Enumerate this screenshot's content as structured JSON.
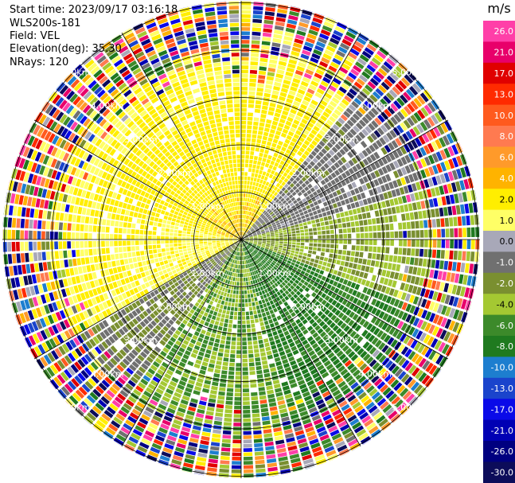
{
  "header": {
    "start_time": "Start time: 2023/09/17 03:16:18",
    "instrument": "WLS200s-181",
    "field": "Field: VEL",
    "elevation": "Elevation(deg): 35.30",
    "nrays": "NRays: 120"
  },
  "colorbar": {
    "unit": "m/s",
    "ticks": [
      "26.0",
      "21.0",
      "17.0",
      "13.0",
      "10.0",
      "8.0",
      "6.0",
      "4.0",
      "2.0",
      "1.0",
      "0.0",
      "-1.0",
      "-2.0",
      "-4.0",
      "-6.0",
      "-8.0",
      "-10.0",
      "-13.0",
      "-17.0",
      "-21.0",
      "-26.0",
      "-30.0"
    ],
    "colors": [
      "#ff3fa8",
      "#e8006a",
      "#e00000",
      "#ff2a00",
      "#ff5a1e",
      "#ff7a50",
      "#ff9a2a",
      "#ffb300",
      "#ffee00",
      "#ffff66",
      "#a8a8b8",
      "#707070",
      "#7a8f30",
      "#a4c832",
      "#3c8a2a",
      "#1f7a1f",
      "#1d7ecf",
      "#1a44cc",
      "#0a0ae8",
      "#0000b4",
      "#000080",
      "#0c0c5a"
    ]
  },
  "chart_data": {
    "type": "ppi",
    "field": "VEL",
    "units": "m/s",
    "nrays": 120,
    "elevation_deg": 35.3,
    "ring_labels": [
      "1.00km",
      "2.00km",
      "3.00km",
      "4.00km",
      "5.00km"
    ],
    "range_rings_km": [
      1,
      2,
      3,
      4,
      5
    ],
    "spokes_deg": [
      0,
      30,
      60,
      90,
      120,
      150,
      180,
      210,
      240,
      270,
      300,
      330
    ],
    "velocity_pattern": [
      {
        "azimuth_start": 285,
        "azimuth_end": 40,
        "inner_value": 4.0,
        "outer_value": 2.0,
        "note": "N to NE"
      },
      {
        "azimuth_start": 40,
        "azimuth_end": 75,
        "value": -0.5
      },
      {
        "azimuth_start": 75,
        "azimuth_end": 110,
        "value": -2.0
      },
      {
        "azimuth_start": 110,
        "azimuth_end": 165,
        "value": -6.0
      },
      {
        "azimuth_start": 165,
        "azimuth_end": 215,
        "value": -4.0
      },
      {
        "azimuth_start": 215,
        "azimuth_end": 240,
        "value": -1.0
      },
      {
        "azimuth_start": 240,
        "azimuth_end": 285,
        "value": 2.0
      },
      {
        "azimuth_start": 285,
        "azimuth_end": 330,
        "inner_value": 8.0,
        "outer_value": 4.0
      }
    ],
    "noise_starts_km": 4.0
  }
}
